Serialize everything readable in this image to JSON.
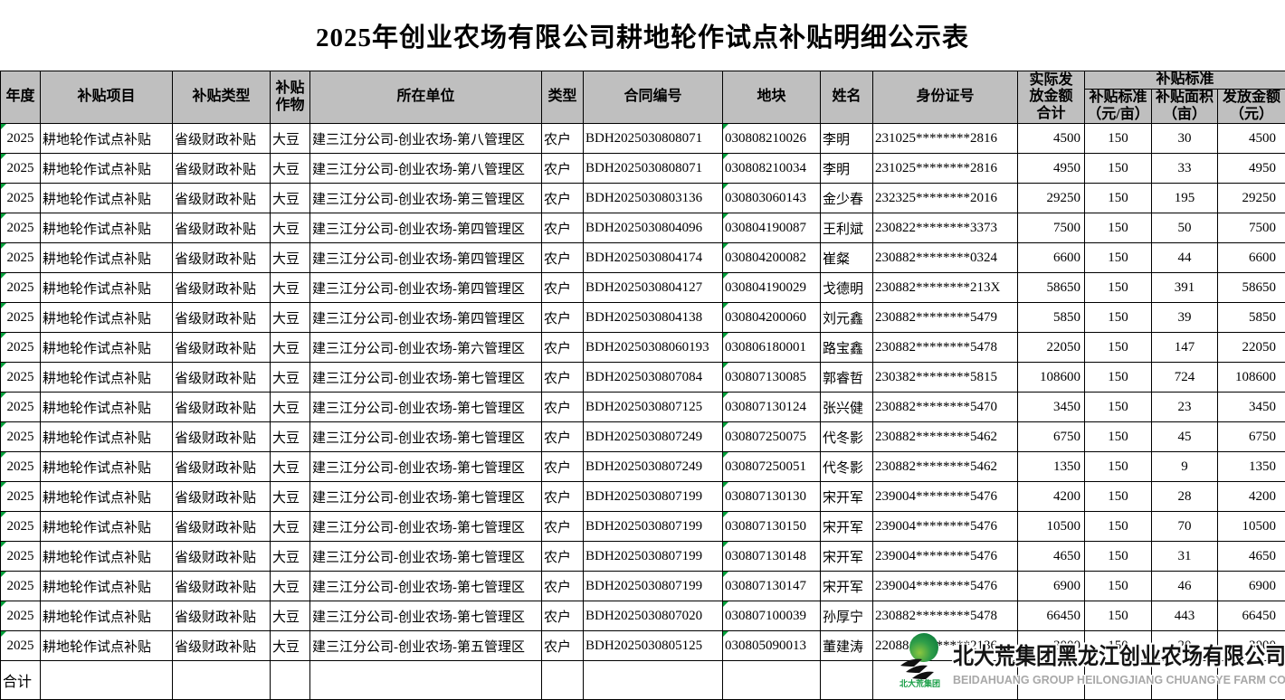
{
  "title": "2025年创业农场有限公司耕地轮作试点补贴明细公示表",
  "colors": {
    "header_bg": "#bfbfbf",
    "error_indicator_green": "#00a03a",
    "logo_green": "#159c43",
    "logo_light_green": "#8dc63f",
    "logo_text_gray": "#a8a8a8"
  },
  "table": {
    "headers": {
      "year": "年度",
      "project": "补贴项目",
      "subsidy_type": "补贴类型",
      "crop": "补贴\n作物",
      "unit": "所在单位",
      "household_type": "类型",
      "contract_no": "合同编号",
      "plot": "地块",
      "name": "姓名",
      "id_no": "身份证号",
      "actual_total": "实际发\n放金额\n合计",
      "standard_group": "补贴标准",
      "standard": "补贴标准\n（元/亩）",
      "area": "补贴面积\n（亩）",
      "amount": "发放金额\n（元）"
    },
    "rows": [
      [
        "2025",
        "耕地轮作试点补贴",
        "省级财政补贴",
        "大豆",
        "建三江分公司-创业农场-第八管理区",
        "农户",
        "BDH2025030808071",
        "030808210026",
        "李明",
        "231025********2816",
        "4500",
        "150",
        "30",
        "4500"
      ],
      [
        "2025",
        "耕地轮作试点补贴",
        "省级财政补贴",
        "大豆",
        "建三江分公司-创业农场-第八管理区",
        "农户",
        "BDH2025030808071",
        "030808210034",
        "李明",
        "231025********2816",
        "4950",
        "150",
        "33",
        "4950"
      ],
      [
        "2025",
        "耕地轮作试点补贴",
        "省级财政补贴",
        "大豆",
        "建三江分公司-创业农场-第三管理区",
        "农户",
        "BDH2025030803136",
        "030803060143",
        "金少春",
        "232325********2016",
        "29250",
        "150",
        "195",
        "29250"
      ],
      [
        "2025",
        "耕地轮作试点补贴",
        "省级财政补贴",
        "大豆",
        "建三江分公司-创业农场-第四管理区",
        "农户",
        "BDH2025030804096",
        "030804190087",
        "王利斌",
        "230822********3373",
        "7500",
        "150",
        "50",
        "7500"
      ],
      [
        "2025",
        "耕地轮作试点补贴",
        "省级财政补贴",
        "大豆",
        "建三江分公司-创业农场-第四管理区",
        "农户",
        "BDH2025030804174",
        "030804200082",
        "崔粲",
        "230882********0324",
        "6600",
        "150",
        "44",
        "6600"
      ],
      [
        "2025",
        "耕地轮作试点补贴",
        "省级财政补贴",
        "大豆",
        "建三江分公司-创业农场-第四管理区",
        "农户",
        "BDH2025030804127",
        "030804190029",
        "戈德明",
        "230882********213X",
        "58650",
        "150",
        "391",
        "58650"
      ],
      [
        "2025",
        "耕地轮作试点补贴",
        "省级财政补贴",
        "大豆",
        "建三江分公司-创业农场-第四管理区",
        "农户",
        "BDH2025030804138",
        "030804200060",
        "刘元鑫",
        "230882********5479",
        "5850",
        "150",
        "39",
        "5850"
      ],
      [
        "2025",
        "耕地轮作试点补贴",
        "省级财政补贴",
        "大豆",
        "建三江分公司-创业农场-第六管理区",
        "农户",
        "BDH20250308060193",
        "030806180001",
        "路宝鑫",
        "230882********5478",
        "22050",
        "150",
        "147",
        "22050"
      ],
      [
        "2025",
        "耕地轮作试点补贴",
        "省级财政补贴",
        "大豆",
        "建三江分公司-创业农场-第七管理区",
        "农户",
        "BDH2025030807084",
        "030807130085",
        "郭睿哲",
        "230382********5815",
        "108600",
        "150",
        "724",
        "108600"
      ],
      [
        "2025",
        "耕地轮作试点补贴",
        "省级财政补贴",
        "大豆",
        "建三江分公司-创业农场-第七管理区",
        "农户",
        "BDH2025030807125",
        "030807130124",
        "张兴健",
        "230882********5470",
        "3450",
        "150",
        "23",
        "3450"
      ],
      [
        "2025",
        "耕地轮作试点补贴",
        "省级财政补贴",
        "大豆",
        "建三江分公司-创业农场-第七管理区",
        "农户",
        "BDH2025030807249",
        "030807250075",
        "代冬影",
        "230882********5462",
        "6750",
        "150",
        "45",
        "6750"
      ],
      [
        "2025",
        "耕地轮作试点补贴",
        "省级财政补贴",
        "大豆",
        "建三江分公司-创业农场-第七管理区",
        "农户",
        "BDH2025030807249",
        "030807250051",
        "代冬影",
        "230882********5462",
        "1350",
        "150",
        "9",
        "1350"
      ],
      [
        "2025",
        "耕地轮作试点补贴",
        "省级财政补贴",
        "大豆",
        "建三江分公司-创业农场-第七管理区",
        "农户",
        "BDH2025030807199",
        "030807130130",
        "宋开军",
        "239004********5476",
        "4200",
        "150",
        "28",
        "4200"
      ],
      [
        "2025",
        "耕地轮作试点补贴",
        "省级财政补贴",
        "大豆",
        "建三江分公司-创业农场-第七管理区",
        "农户",
        "BDH2025030807199",
        "030807130150",
        "宋开军",
        "239004********5476",
        "10500",
        "150",
        "70",
        "10500"
      ],
      [
        "2025",
        "耕地轮作试点补贴",
        "省级财政补贴",
        "大豆",
        "建三江分公司-创业农场-第七管理区",
        "农户",
        "BDH2025030807199",
        "030807130148",
        "宋开军",
        "239004********5476",
        "4650",
        "150",
        "31",
        "4650"
      ],
      [
        "2025",
        "耕地轮作试点补贴",
        "省级财政补贴",
        "大豆",
        "建三江分公司-创业农场-第七管理区",
        "农户",
        "BDH2025030807199",
        "030807130147",
        "宋开军",
        "239004********5476",
        "6900",
        "150",
        "46",
        "6900"
      ],
      [
        "2025",
        "耕地轮作试点补贴",
        "省级财政补贴",
        "大豆",
        "建三江分公司-创业农场-第七管理区",
        "农户",
        "BDH2025030807020",
        "030807100039",
        "孙厚宁",
        "230882********5478",
        "66450",
        "150",
        "443",
        "66450"
      ],
      [
        "2025",
        "耕地轮作试点补贴",
        "省级财政补贴",
        "大豆",
        "建三江分公司-创业农场-第五管理区",
        "农户",
        "BDH2025030805125",
        "030805090013",
        "董建涛",
        "220881********2136",
        "3000",
        "150",
        "20",
        "3000"
      ]
    ],
    "total_label": "合计"
  },
  "logo": {
    "mark_text": "北大荒集团",
    "company_cn": "北大荒集团黑龙江创业农场有限公司",
    "company_en": "BEIDAHUANG GROUP HEILONGJIANG CHUANGYE FARM CO.,LTD."
  }
}
